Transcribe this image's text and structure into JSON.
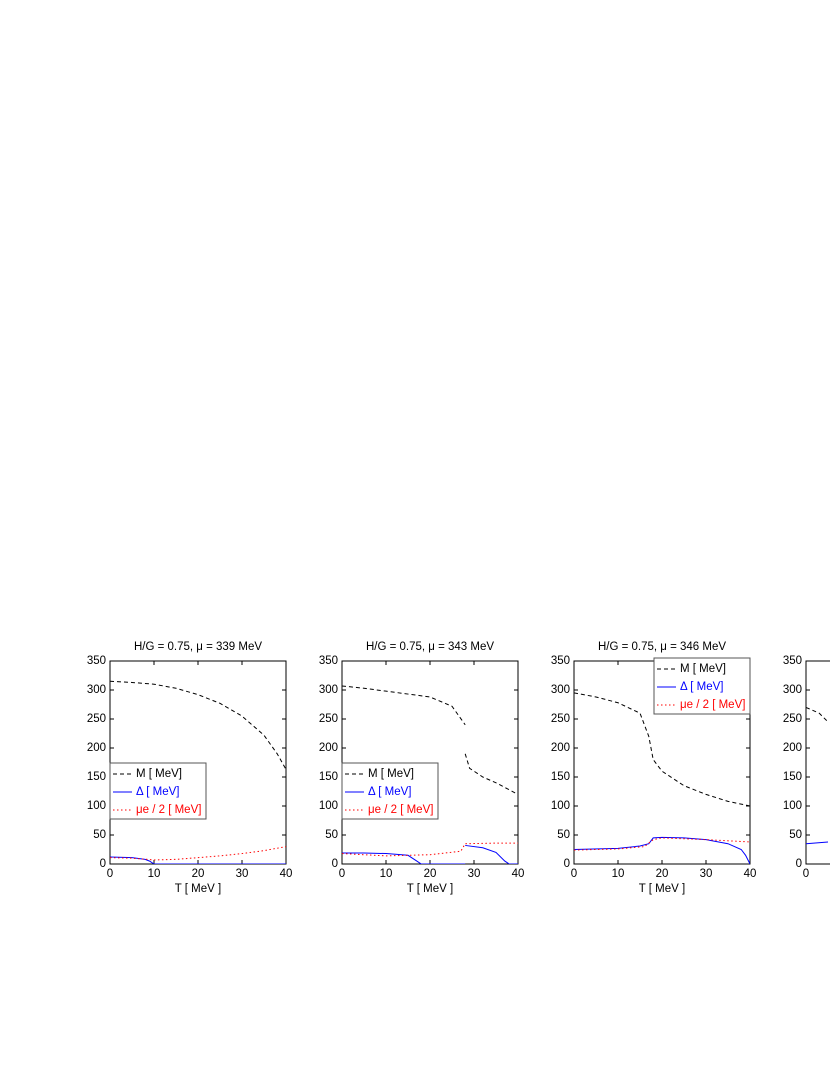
{
  "chart_data": [
    {
      "type": "line",
      "title": "H/G  =  0.75,  μ  =  339 MeV",
      "xlabel": "T [ MeV ]",
      "xlim": [
        0,
        40
      ],
      "ylim": [
        0,
        350
      ],
      "xticks": [
        0,
        10,
        20,
        30,
        40
      ],
      "yticks": [
        0,
        50,
        100,
        150,
        200,
        250,
        300,
        350
      ],
      "legend": "center left",
      "series": [
        {
          "name": "M [ MeV]",
          "color": "#000000",
          "dash": "dashed",
          "x": [
            0,
            5,
            10,
            15,
            20,
            25,
            30,
            35,
            38,
            40
          ],
          "values": [
            315,
            313,
            310,
            303,
            292,
            277,
            255,
            222,
            190,
            163
          ]
        },
        {
          "name": "Δ  [ MeV]",
          "color": "#0000ff",
          "dash": "solid",
          "x": [
            0,
            5,
            8,
            9,
            10,
            20,
            30,
            40
          ],
          "values": [
            12,
            11,
            8,
            5,
            0,
            0,
            0,
            0
          ]
        },
        {
          "name": "μe / 2 [ MeV]",
          "color": "#ff0000",
          "dash": "dotted",
          "x": [
            0,
            5,
            10,
            15,
            20,
            25,
            30,
            35,
            40
          ],
          "values": [
            11,
            10,
            7,
            8,
            11,
            14,
            18,
            23,
            30
          ]
        }
      ]
    },
    {
      "type": "line",
      "title": "H/G  =  0.75,    μ  =  343 MeV",
      "xlabel": "T [ MeV ]",
      "xlim": [
        0,
        40
      ],
      "ylim": [
        0,
        350
      ],
      "xticks": [
        0,
        10,
        20,
        30,
        40
      ],
      "yticks": [
        0,
        50,
        100,
        150,
        200,
        250,
        300,
        350
      ],
      "legend": "center left",
      "series": [
        {
          "name": "M [ MeV]",
          "color": "#000000",
          "dash": "dashed",
          "x": [
            0,
            5,
            10,
            15,
            20,
            25,
            28,
            28,
            28,
            29,
            32,
            35,
            40
          ],
          "values": [
            307,
            303,
            298,
            293,
            288,
            272,
            240,
            null,
            190,
            165,
            150,
            140,
            120
          ]
        },
        {
          "name": "Δ  [ MeV]",
          "color": "#0000ff",
          "dash": "solid",
          "x": [
            0,
            5,
            10,
            15,
            17,
            18,
            28,
            28,
            28,
            32,
            35,
            37,
            38,
            40
          ],
          "values": [
            19,
            19,
            18,
            15,
            5,
            0,
            0,
            null,
            32,
            28,
            20,
            5,
            0,
            0
          ]
        },
        {
          "name": "μe / 2 [ MeV]",
          "color": "#ff0000",
          "dash": "dotted",
          "x": [
            0,
            10,
            20,
            27,
            28,
            35,
            40
          ],
          "values": [
            18,
            14,
            16,
            22,
            35,
            36,
            36
          ]
        }
      ]
    },
    {
      "type": "line",
      "title": "H/G  =  0.75,  μ  =  346 MeV",
      "xlabel": "T [ MeV ]",
      "xlim": [
        0,
        40
      ],
      "ylim": [
        0,
        350
      ],
      "xticks": [
        0,
        10,
        20,
        30,
        40
      ],
      "yticks": [
        0,
        50,
        100,
        150,
        200,
        250,
        300,
        350
      ],
      "legend": "upper right",
      "series": [
        {
          "name": "M [ MeV]",
          "color": "#000000",
          "dash": "dashed",
          "x": [
            0,
            5,
            10,
            15,
            17,
            18,
            20,
            25,
            30,
            35,
            40
          ],
          "values": [
            295,
            288,
            278,
            260,
            220,
            180,
            160,
            135,
            120,
            108,
            100
          ]
        },
        {
          "name": "Δ  [ MeV]",
          "color": "#0000ff",
          "dash": "solid",
          "x": [
            0,
            10,
            15,
            17,
            18,
            20,
            25,
            30,
            35,
            38,
            39,
            40
          ],
          "values": [
            25,
            27,
            31,
            35,
            45,
            46,
            45,
            42,
            35,
            25,
            15,
            0
          ]
        },
        {
          "name": "μe / 2 [ MeV]",
          "color": "#ff0000",
          "dash": "dotted",
          "x": [
            0,
            10,
            16,
            18,
            20,
            30,
            40
          ],
          "values": [
            24,
            26,
            30,
            42,
            45,
            42,
            38
          ]
        }
      ]
    },
    {
      "type": "line",
      "xlim": [
        0,
        40
      ],
      "ylim": [
        0,
        350
      ],
      "xticks": [
        0
      ],
      "yticks": [
        0,
        50,
        100,
        150,
        200,
        250,
        300,
        350
      ],
      "series": [
        {
          "color": "#000000",
          "dash": "dashed",
          "x": [
            0,
            3,
            5
          ],
          "values": [
            270,
            260,
            245
          ]
        },
        {
          "color": "#0000ff",
          "dash": "solid",
          "x": [
            0,
            5
          ],
          "values": [
            35,
            38
          ]
        }
      ]
    }
  ]
}
